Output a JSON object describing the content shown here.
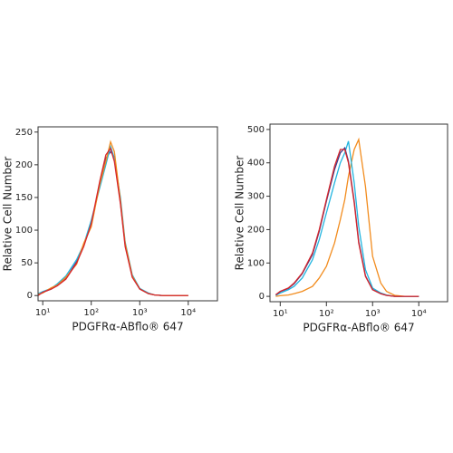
{
  "chart_data": [
    {
      "type": "line",
      "xscale": "log",
      "grid": false,
      "xlabel": "PDGFRα-ABflo® 647",
      "ylabel": "Relative Cell Number",
      "xlim": [
        8,
        40000
      ],
      "ylim": [
        -8,
        258
      ],
      "xticks": [
        {
          "value": 10,
          "label": "10¹"
        },
        {
          "value": 100,
          "label": "10²"
        },
        {
          "value": 1000,
          "label": "10³"
        },
        {
          "value": 10000,
          "label": "10⁴"
        }
      ],
      "yticks": [
        0,
        50,
        100,
        150,
        200,
        250
      ],
      "x": [
        8,
        10,
        15,
        20,
        30,
        50,
        70,
        100,
        150,
        200,
        250,
        300,
        400,
        500,
        700,
        1000,
        1500,
        2000,
        3000,
        5000,
        10000
      ],
      "series": [
        {
          "color": "#5a3a8a",
          "values": [
            1,
            5,
            10,
            16,
            26,
            52,
            77,
            108,
            172,
            210,
            220,
            212,
            142,
            78,
            29,
            10,
            3,
            1,
            0,
            0,
            0
          ]
        },
        {
          "color": "#22b5e0",
          "values": [
            3,
            6,
            11,
            18,
            30,
            55,
            78,
            115,
            165,
            200,
            228,
            210,
            150,
            82,
            32,
            11,
            4,
            1,
            0,
            0,
            0
          ]
        },
        {
          "color": "#f28c1e",
          "values": [
            2,
            4,
            12,
            16,
            28,
            48,
            80,
            105,
            170,
            205,
            235,
            220,
            145,
            80,
            30,
            10,
            3,
            1,
            0,
            0,
            0
          ]
        },
        {
          "color": "#d7262b",
          "values": [
            0,
            5,
            10,
            15,
            25,
            50,
            75,
            110,
            175,
            215,
            225,
            205,
            140,
            75,
            28,
            10,
            3,
            1,
            0,
            0,
            0
          ]
        }
      ]
    },
    {
      "type": "line",
      "xscale": "log",
      "grid": false,
      "xlabel": "PDGFRα-ABflo® 647",
      "ylabel": "Relative Cell Number",
      "xlim": [
        6,
        42000
      ],
      "ylim": [
        -16,
        516
      ],
      "xticks": [
        {
          "value": 10,
          "label": "10¹"
        },
        {
          "value": 100,
          "label": "10²"
        },
        {
          "value": 1000,
          "label": "10³"
        },
        {
          "value": 10000,
          "label": "10⁴"
        }
      ],
      "yticks": [
        0,
        100,
        200,
        300,
        400,
        500
      ],
      "x": [
        8,
        10,
        15,
        20,
        30,
        50,
        70,
        100,
        150,
        200,
        250,
        300,
        400,
        500,
        700,
        1000,
        1500,
        2000,
        3000,
        5000,
        10000
      ],
      "series": [
        {
          "color": "#f28c1e",
          "values": [
            0,
            2,
            4,
            8,
            15,
            30,
            55,
            90,
            160,
            230,
            290,
            360,
            440,
            470,
            330,
            120,
            40,
            15,
            3,
            0,
            0
          ]
        },
        {
          "color": "#22b5e0",
          "values": [
            3,
            10,
            20,
            30,
            55,
            110,
            170,
            250,
            340,
            400,
            430,
            465,
            340,
            210,
            80,
            25,
            10,
            4,
            0,
            0,
            0
          ]
        },
        {
          "color": "#3a3f8f",
          "values": [
            4,
            14,
            24,
            38,
            68,
            125,
            195,
            285,
            380,
            430,
            445,
            405,
            285,
            165,
            62,
            20,
            8,
            3,
            0,
            0,
            0
          ]
        },
        {
          "color": "#d7262b",
          "values": [
            5,
            15,
            25,
            40,
            70,
            130,
            200,
            290,
            390,
            440,
            440,
            400,
            280,
            160,
            60,
            20,
            8,
            3,
            0,
            0,
            0
          ]
        }
      ]
    }
  ]
}
